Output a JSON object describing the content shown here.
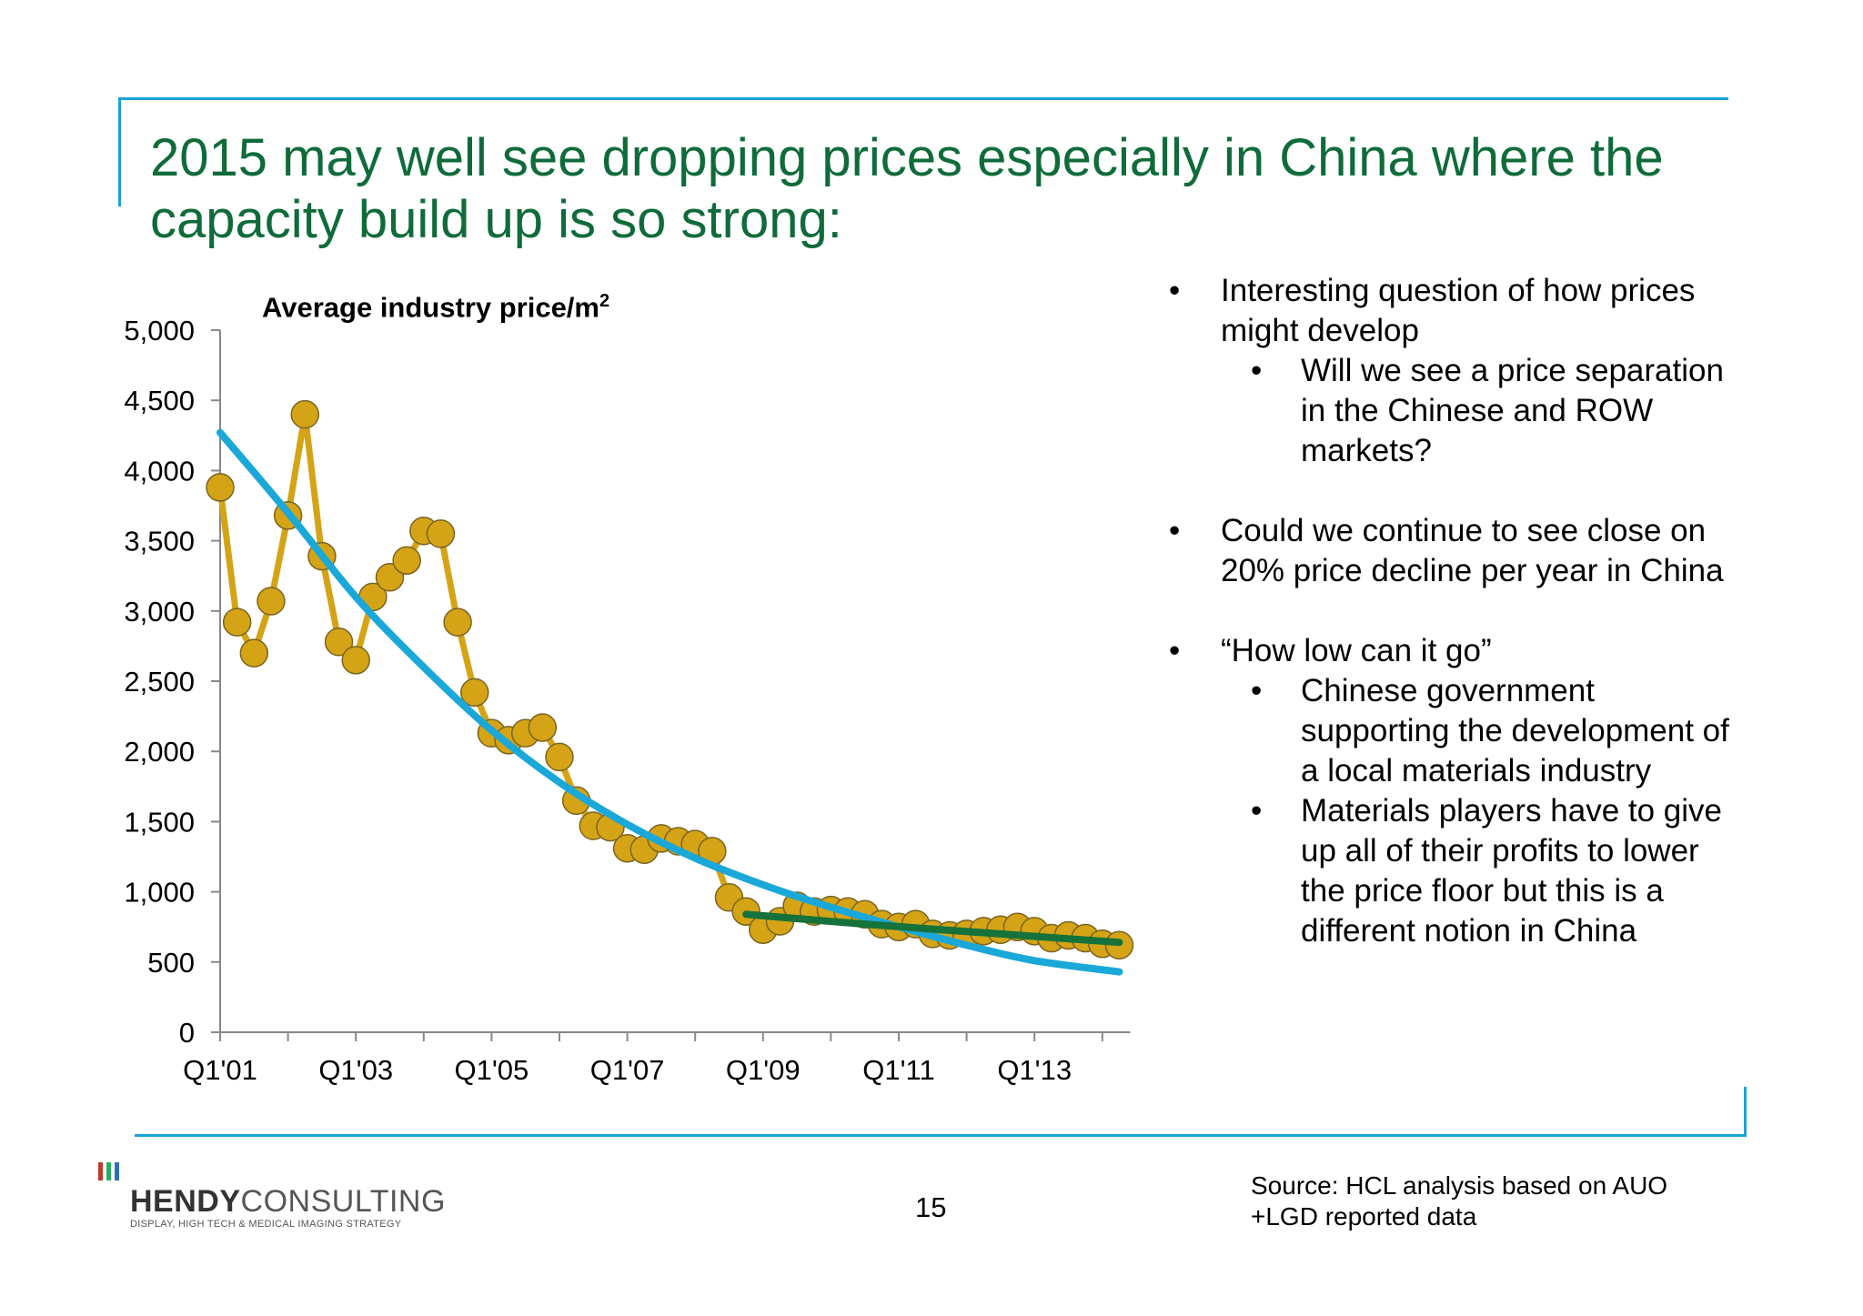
{
  "title": "2015 may well see dropping prices especially in China where the capacity build up is so strong:",
  "chart_data": {
    "type": "line",
    "title": "Average industry price/m",
    "title_superscript": "2",
    "ylim": [
      0,
      5000
    ],
    "yticks": [
      "0",
      "500",
      "1,000",
      "1,500",
      "2,000",
      "2,500",
      "3,000",
      "3,500",
      "4,000",
      "4,500",
      "5,000"
    ],
    "ytick_values": [
      0,
      500,
      1000,
      1500,
      2000,
      2500,
      3000,
      3500,
      4000,
      4500,
      5000
    ],
    "xlabels": [
      "Q1'01",
      "Q1'03",
      "Q1'05",
      "Q1'07",
      "Q1'09",
      "Q1'11",
      "Q1'13"
    ],
    "xlabel_indices": [
      0,
      8,
      16,
      24,
      32,
      40,
      48
    ],
    "grid": false,
    "series": [
      {
        "values": [
          3880,
          2920,
          2700,
          3070,
          3680,
          4400,
          3390,
          2780,
          2650,
          3100,
          3240,
          3360,
          3570,
          3550,
          2920,
          2420,
          2130,
          2080,
          2130,
          2170,
          1960,
          1650,
          1470,
          1460,
          1310,
          1300,
          1380,
          1360,
          1340,
          1290,
          960,
          860,
          730,
          790,
          900,
          860,
          870,
          860,
          840,
          770,
          750,
          770,
          700,
          690,
          700,
          720,
          730,
          750,
          720,
          670,
          690,
          670,
          630,
          620
        ],
        "color": "#d4a416"
      },
      {
        "type": "trend",
        "values_start_index": 0,
        "values": [
          4270,
          3700,
          3100,
          2600,
          2150,
          1780,
          1480,
          1240,
          1050,
          890,
          750,
          620,
          510,
          430
        ],
        "x_indices": [
          0,
          4,
          8,
          12,
          16,
          20,
          24,
          28,
          32,
          36,
          40,
          44,
          48,
          53
        ],
        "color": "#1aa8d8"
      },
      {
        "type": "trend",
        "values": [
          840,
          770,
          700,
          640
        ],
        "x_indices": [
          31,
          38,
          46,
          53
        ],
        "color": "#15723a"
      }
    ]
  },
  "bullets": [
    {
      "text": "Interesting question of how prices might develop",
      "sub": [
        "Will we see a price separation in the Chinese and ROW markets?"
      ]
    },
    {
      "text": "Could we continue to see close on 20% price decline per year in China",
      "sub": []
    },
    {
      "text": "“How low can it go”",
      "sub": [
        "Chinese government supporting the development of a local materials industry",
        "Materials players have to give up all of their profits to lower the price floor but this is a different notion in China"
      ]
    }
  ],
  "footer": {
    "logo_bold": "HENDY",
    "logo_light": "CONSULTING",
    "logo_tagline": "DISPLAY, HIGH TECH & MEDICAL IMAGING STRATEGY",
    "page_number": "15",
    "source": "Source: HCL analysis based on AUO +LGD reported data"
  },
  "colors": {
    "frame": "#1aa3d9",
    "title": "#0f6b3a",
    "marker": "#d4a416",
    "logo_bars": [
      "#c0392b",
      "#27ae60",
      "#2f6fb5"
    ]
  }
}
